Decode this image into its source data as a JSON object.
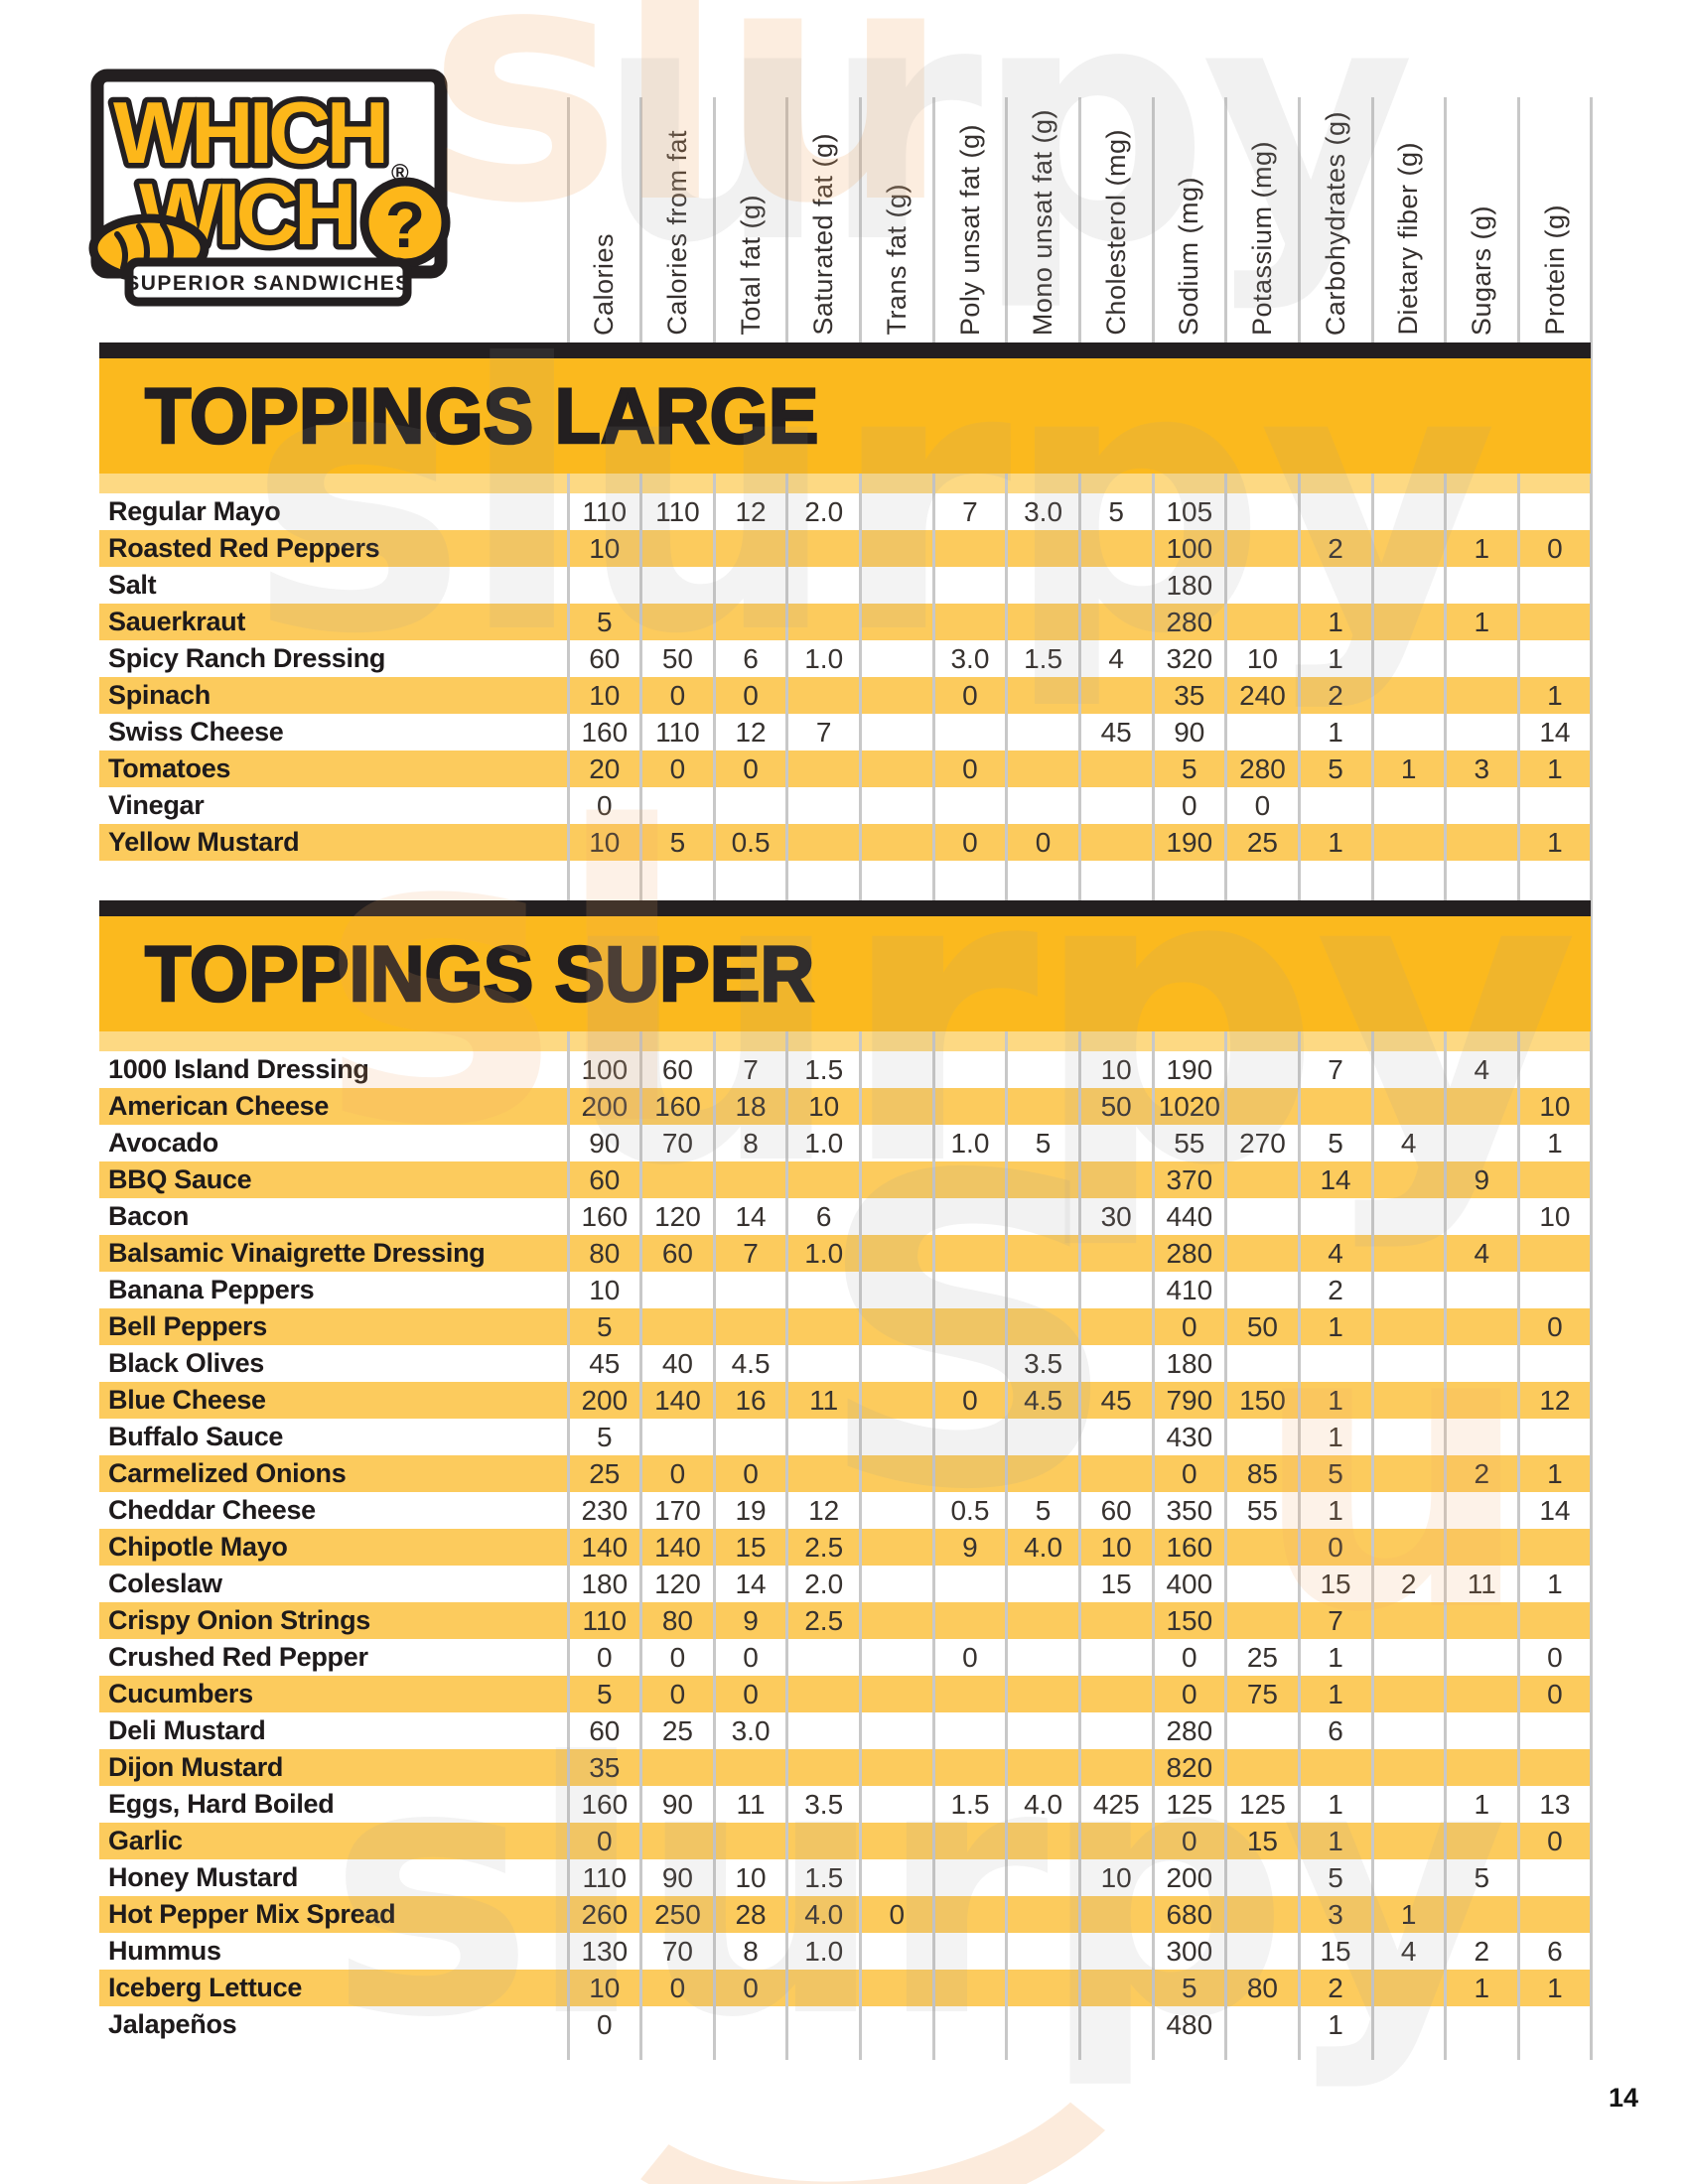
{
  "page_number": "14",
  "logo": {
    "line1": "WHICH",
    "line2": "WICH",
    "reg": "®",
    "qmark": "?",
    "tagline": "SUPERIOR SANDWICHES"
  },
  "columns": [
    "Calories",
    "Calories from fat",
    "Total fat (g)",
    "Saturated fat (g)",
    "Trans fat (g)",
    "Poly unsat fat (g)",
    "Mono unsat fat (g)",
    "Cholesterol (mg)",
    "Sodium (mg)",
    "Potassium (mg)",
    "Carbohydrates (g)",
    "Dietary fiber (g)",
    "Sugars (g)",
    "Protein (g)"
  ],
  "sections": [
    {
      "title": "TOPPINGS LARGE",
      "rows": [
        {
          "name": "Regular Mayo",
          "values": [
            "110",
            "110",
            "12",
            "2.0",
            "",
            "7",
            "3.0",
            "5",
            "105",
            "",
            "",
            "",
            "",
            ""
          ]
        },
        {
          "name": "Roasted Red Peppers",
          "values": [
            "10",
            "",
            "",
            "",
            "",
            "",
            "",
            "",
            "100",
            "",
            "2",
            "",
            "1",
            "0"
          ]
        },
        {
          "name": "Salt",
          "values": [
            "",
            "",
            "",
            "",
            "",
            "",
            "",
            "",
            "180",
            "",
            "",
            "",
            "",
            ""
          ]
        },
        {
          "name": "Sauerkraut",
          "values": [
            "5",
            "",
            "",
            "",
            "",
            "",
            "",
            "",
            "280",
            "",
            "1",
            "",
            "1",
            ""
          ]
        },
        {
          "name": "Spicy Ranch Dressing",
          "values": [
            "60",
            "50",
            "6",
            "1.0",
            "",
            "3.0",
            "1.5",
            "4",
            "320",
            "10",
            "1",
            "",
            "",
            ""
          ]
        },
        {
          "name": "Spinach",
          "values": [
            "10",
            "0",
            "0",
            "",
            "",
            "0",
            "",
            "",
            "35",
            "240",
            "2",
            "",
            "",
            "1"
          ]
        },
        {
          "name": "Swiss Cheese",
          "values": [
            "160",
            "110",
            "12",
            "7",
            "",
            "",
            "",
            "45",
            "90",
            "",
            "1",
            "",
            "",
            "14"
          ]
        },
        {
          "name": "Tomatoes",
          "values": [
            "20",
            "0",
            "0",
            "",
            "",
            "0",
            "",
            "",
            "5",
            "280",
            "5",
            "1",
            "3",
            "1"
          ]
        },
        {
          "name": "Vinegar",
          "values": [
            "0",
            "",
            "",
            "",
            "",
            "",
            "",
            "",
            "0",
            "0",
            "",
            "",
            "",
            ""
          ]
        },
        {
          "name": "Yellow Mustard",
          "values": [
            "10",
            "5",
            "0.5",
            "",
            "",
            "0",
            "0",
            "",
            "190",
            "25",
            "1",
            "",
            "",
            "1"
          ]
        }
      ]
    },
    {
      "title": "TOPPINGS SUPER",
      "rows": [
        {
          "name": "1000 Island Dressing",
          "values": [
            "100",
            "60",
            "7",
            "1.5",
            "",
            "",
            "",
            "10",
            "190",
            "",
            "7",
            "",
            "4",
            ""
          ]
        },
        {
          "name": "American Cheese",
          "values": [
            "200",
            "160",
            "18",
            "10",
            "",
            "",
            "",
            "50",
            "1020",
            "",
            "",
            "",
            "",
            "10"
          ]
        },
        {
          "name": "Avocado",
          "values": [
            "90",
            "70",
            "8",
            "1.0",
            "",
            "1.0",
            "5",
            "",
            "55",
            "270",
            "5",
            "4",
            "",
            "1"
          ]
        },
        {
          "name": "BBQ Sauce",
          "values": [
            "60",
            "",
            "",
            "",
            "",
            "",
            "",
            "",
            "370",
            "",
            "14",
            "",
            "9",
            ""
          ]
        },
        {
          "name": "Bacon",
          "values": [
            "160",
            "120",
            "14",
            "6",
            "",
            "",
            "",
            "30",
            "440",
            "",
            "",
            "",
            "",
            "10"
          ]
        },
        {
          "name": "Balsamic Vinaigrette Dressing",
          "values": [
            "80",
            "60",
            "7",
            "1.0",
            "",
            "",
            "",
            "",
            "280",
            "",
            "4",
            "",
            "4",
            ""
          ]
        },
        {
          "name": "Banana Peppers",
          "values": [
            "10",
            "",
            "",
            "",
            "",
            "",
            "",
            "",
            "410",
            "",
            "2",
            "",
            "",
            ""
          ]
        },
        {
          "name": "Bell Peppers",
          "values": [
            "5",
            "",
            "",
            "",
            "",
            "",
            "",
            "",
            "0",
            "50",
            "1",
            "",
            "",
            "0"
          ]
        },
        {
          "name": "Black Olives",
          "values": [
            "45",
            "40",
            "4.5",
            "",
            "",
            "",
            "3.5",
            "",
            "180",
            "",
            "",
            "",
            "",
            ""
          ]
        },
        {
          "name": "Blue Cheese",
          "values": [
            "200",
            "140",
            "16",
            "11",
            "",
            "0",
            "4.5",
            "45",
            "790",
            "150",
            "1",
            "",
            "",
            "12"
          ]
        },
        {
          "name": "Buffalo Sauce",
          "values": [
            "5",
            "",
            "",
            "",
            "",
            "",
            "",
            "",
            "430",
            "",
            "1",
            "",
            "",
            ""
          ]
        },
        {
          "name": "Carmelized Onions",
          "values": [
            "25",
            "0",
            "0",
            "",
            "",
            "",
            "",
            "",
            "0",
            "85",
            "5",
            "",
            "2",
            "1"
          ]
        },
        {
          "name": "Cheddar Cheese",
          "values": [
            "230",
            "170",
            "19",
            "12",
            "",
            "0.5",
            "5",
            "60",
            "350",
            "55",
            "1",
            "",
            "",
            "14"
          ]
        },
        {
          "name": "Chipotle Mayo",
          "values": [
            "140",
            "140",
            "15",
            "2.5",
            "",
            "9",
            "4.0",
            "10",
            "160",
            "",
            "0",
            "",
            "",
            ""
          ]
        },
        {
          "name": "Coleslaw",
          "values": [
            "180",
            "120",
            "14",
            "2.0",
            "",
            "",
            "",
            "15",
            "400",
            "",
            "15",
            "2",
            "11",
            "1"
          ]
        },
        {
          "name": "Crispy Onion Strings",
          "values": [
            "110",
            "80",
            "9",
            "2.5",
            "",
            "",
            "",
            "",
            "150",
            "",
            "7",
            "",
            "",
            ""
          ]
        },
        {
          "name": "Crushed Red Pepper",
          "values": [
            "0",
            "0",
            "0",
            "",
            "",
            "0",
            "",
            "",
            "0",
            "25",
            "1",
            "",
            "",
            "0"
          ]
        },
        {
          "name": "Cucumbers",
          "values": [
            "5",
            "0",
            "0",
            "",
            "",
            "",
            "",
            "",
            "0",
            "75",
            "1",
            "",
            "",
            "0"
          ]
        },
        {
          "name": "Deli Mustard",
          "values": [
            "60",
            "25",
            "3.0",
            "",
            "",
            "",
            "",
            "",
            "280",
            "",
            "6",
            "",
            "",
            ""
          ]
        },
        {
          "name": "Dijon Mustard",
          "values": [
            "35",
            "",
            "",
            "",
            "",
            "",
            "",
            "",
            "820",
            "",
            "",
            "",
            "",
            ""
          ]
        },
        {
          "name": "Eggs, Hard Boiled",
          "values": [
            "160",
            "90",
            "11",
            "3.5",
            "",
            "1.5",
            "4.0",
            "425",
            "125",
            "125",
            "1",
            "",
            "1",
            "13"
          ]
        },
        {
          "name": "Garlic",
          "values": [
            "0",
            "",
            "",
            "",
            "",
            "",
            "",
            "",
            "0",
            "15",
            "1",
            "",
            "",
            "0"
          ]
        },
        {
          "name": "Honey Mustard",
          "values": [
            "110",
            "90",
            "10",
            "1.5",
            "",
            "",
            "",
            "10",
            "200",
            "",
            "5",
            "",
            "5",
            ""
          ]
        },
        {
          "name": "Hot Pepper Mix Spread",
          "values": [
            "260",
            "250",
            "28",
            "4.0",
            "0",
            "",
            "",
            "",
            "680",
            "",
            "3",
            "1",
            "",
            ""
          ]
        },
        {
          "name": "Hummus",
          "values": [
            "130",
            "70",
            "8",
            "1.0",
            "",
            "",
            "",
            "",
            "300",
            "",
            "15",
            "4",
            "2",
            "6"
          ]
        },
        {
          "name": "Iceberg Lettuce",
          "values": [
            "10",
            "0",
            "0",
            "",
            "",
            "",
            "",
            "",
            "5",
            "80",
            "2",
            "",
            "1",
            "1"
          ]
        },
        {
          "name": "Jalapeños",
          "values": [
            "0",
            "",
            "",
            "",
            "",
            "",
            "",
            "",
            "480",
            "",
            "1",
            "",
            "",
            ""
          ]
        }
      ]
    }
  ],
  "watermarks": [
    {
      "text": "slu",
      "tone": "orange"
    },
    {
      "text": "urpy",
      "tone": "gray"
    },
    {
      "text": "slurpy",
      "tone": "gray"
    },
    {
      "text": "sl",
      "tone": "orange"
    },
    {
      "text": "urpy",
      "tone": "gray"
    },
    {
      "text": "S",
      "tone": "gray"
    },
    {
      "text": "u",
      "tone": "orange"
    },
    {
      "text": "slurpy",
      "tone": "gray"
    }
  ],
  "colors": {
    "amber": "#FBB91E",
    "row_yellow": "#FCCB5D",
    "strip_yellow": "#FDD983",
    "ink": "#231F20",
    "grid": "#C8C8C8",
    "num": "#37322F",
    "label_ink": "#1E1A1B",
    "logo_yellow": "#FDB71A",
    "wm_orange": "#F2A964",
    "wm_gray": "#9B9B9B"
  }
}
